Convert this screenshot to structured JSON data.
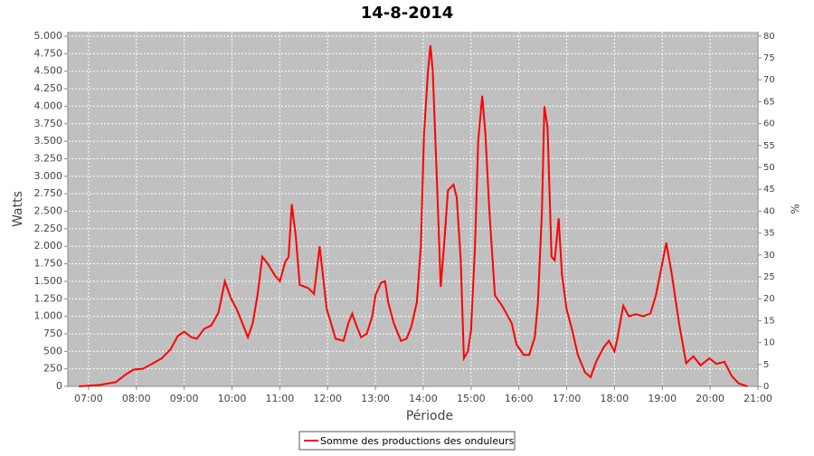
{
  "chart_data": {
    "type": "line",
    "title": "14-8-2014",
    "xlabel": "Période",
    "ylabel": "Watts",
    "y2label": "%",
    "x": [
      "06:48",
      "07:14",
      "07:34",
      "07:48",
      "07:57",
      "08:08",
      "08:21",
      "08:32",
      "08:43",
      "08:52",
      "09:00",
      "09:09",
      "09:16",
      "09:25",
      "09:34",
      "09:43",
      "09:51",
      "09:59",
      "10:06",
      "10:13",
      "10:20",
      "10:26",
      "10:32",
      "10:38",
      "10:45",
      "10:54",
      "11:00",
      "11:07",
      "11:11",
      "11:15",
      "11:20",
      "11:25",
      "11:36",
      "11:43",
      "11:50",
      "11:54",
      "11:59",
      "12:03",
      "12:10",
      "12:20",
      "12:26",
      "12:31",
      "12:35",
      "12:42",
      "12:49",
      "12:56",
      "13:00",
      "13:07",
      "13:12",
      "13:16",
      "13:23",
      "13:32",
      "13:39",
      "13:45",
      "13:52",
      "13:57",
      "14:01",
      "14:06",
      "14:09",
      "14:12",
      "14:17",
      "14:22",
      "14:26",
      "14:31",
      "14:38",
      "14:42",
      "14:47",
      "14:51",
      "14:56",
      "15:00",
      "15:05",
      "15:09",
      "15:14",
      "15:18",
      "15:23",
      "15:30",
      "15:39",
      "15:51",
      "15:57",
      "16:06",
      "16:13",
      "16:20",
      "16:24",
      "16:29",
      "16:32",
      "16:36",
      "16:41",
      "16:45",
      "16:50",
      "16:54",
      "17:00",
      "17:07",
      "17:14",
      "17:23",
      "17:30",
      "17:37",
      "17:46",
      "17:53",
      "18:00",
      "18:03",
      "18:11",
      "18:18",
      "18:27",
      "18:36",
      "18:45",
      "18:52",
      "18:59",
      "19:05",
      "19:12",
      "19:21",
      "19:30",
      "19:39",
      "19:48",
      "19:59",
      "20:08",
      "20:18",
      "20:27",
      "20:36",
      "20:47"
    ],
    "series": [
      {
        "name": "Somme des productions des onduleurs",
        "color": "#ff0000",
        "values": [
          0,
          20,
          60,
          180,
          240,
          250,
          330,
          400,
          530,
          720,
          780,
          700,
          680,
          820,
          870,
          1050,
          1500,
          1250,
          1100,
          900,
          700,
          900,
          1300,
          1850,
          1750,
          1580,
          1500,
          1780,
          1850,
          2600,
          2150,
          1450,
          1400,
          1320,
          2000,
          1600,
          1100,
          950,
          680,
          650,
          900,
          1040,
          900,
          700,
          750,
          1000,
          1300,
          1480,
          1500,
          1200,
          900,
          650,
          680,
          850,
          1200,
          2000,
          3600,
          4500,
          4870,
          4500,
          3000,
          1420,
          2000,
          2800,
          2880,
          2700,
          1800,
          400,
          500,
          800,
          2000,
          3500,
          4150,
          3600,
          2500,
          1300,
          1150,
          900,
          600,
          450,
          450,
          700,
          1200,
          2500,
          4000,
          3700,
          1850,
          1800,
          2400,
          1600,
          1100,
          800,
          450,
          200,
          130,
          350,
          550,
          650,
          500,
          650,
          1150,
          1000,
          1030,
          1000,
          1040,
          1300,
          1700,
          2050,
          1600,
          900,
          330,
          430,
          300,
          400,
          320,
          350,
          150,
          40,
          0
        ]
      }
    ],
    "xlim": [
      "06:34",
      "21:00"
    ],
    "xticks": [
      "07:00",
      "08:00",
      "09:00",
      "10:00",
      "11:00",
      "12:00",
      "13:00",
      "14:00",
      "15:00",
      "16:00",
      "17:00",
      "18:00",
      "19:00",
      "20:00",
      "21:00"
    ],
    "ylim": [
      0,
      5065
    ],
    "yticks": [
      0,
      250,
      500,
      750,
      {
        "value": 1000,
        "label": "1.000"
      },
      {
        "value": 1250,
        "label": "1.250"
      },
      {
        "value": 1500,
        "label": "1.500"
      },
      {
        "value": 1750,
        "label": "1.750"
      },
      {
        "value": 2000,
        "label": "2.000"
      },
      {
        "value": 2250,
        "label": "2.250"
      },
      {
        "value": 2500,
        "label": "2.500"
      },
      {
        "value": 2750,
        "label": "2.750"
      },
      {
        "value": 3000,
        "label": "3.000"
      },
      {
        "value": 3250,
        "label": "3.250"
      },
      {
        "value": 3500,
        "label": "3.500"
      },
      {
        "value": 3750,
        "label": "3.750"
      },
      {
        "value": 4000,
        "label": "4.000"
      },
      {
        "value": 4250,
        "label": "4.250"
      },
      {
        "value": 4500,
        "label": "4.500"
      },
      {
        "value": 4750,
        "label": "4.750"
      },
      {
        "value": 5000,
        "label": "5.000"
      }
    ],
    "y2lim": [
      0,
      81
    ],
    "y2ticks": [
      0,
      5,
      10,
      15,
      20,
      25,
      30,
      35,
      40,
      45,
      50,
      55,
      60,
      65,
      70,
      75,
      80
    ],
    "grid": true,
    "legend": "bottom"
  }
}
